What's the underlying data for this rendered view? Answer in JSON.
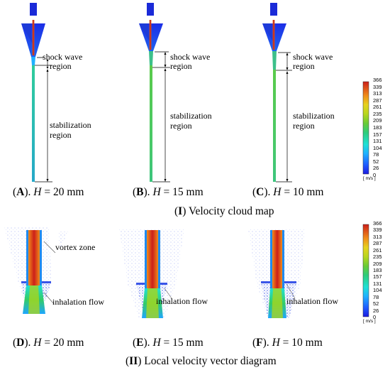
{
  "section_I": {
    "roman": "I",
    "title": "Velocity cloud map"
  },
  "section_II": {
    "roman": "II",
    "title": "Local velocity vector diagram"
  },
  "panels_top": [
    {
      "letter": "A",
      "var": "H",
      "value": "= 20 mm"
    },
    {
      "letter": "B",
      "var": "H",
      "value": "= 15 mm"
    },
    {
      "letter": "C",
      "var": "H",
      "value": "= 10 mm"
    }
  ],
  "panels_bottom": [
    {
      "letter": "D",
      "var": "H",
      "value": "= 20 mm"
    },
    {
      "letter": "E",
      "var": "H",
      "value": "= 15 mm"
    },
    {
      "letter": "F",
      "var": "H",
      "value": "= 10 mm"
    }
  ],
  "annotations": {
    "shock_wave_1": "shock wave",
    "shock_wave_2": "region",
    "stabilization_1": "stabilization",
    "stabilization_2": "region",
    "vortex": "vortex zone",
    "inhalation": "inhalation flow"
  },
  "colorbar": {
    "unit": "[ m/s ]",
    "ticks": [
      "366",
      "339",
      "313",
      "287",
      "261",
      "235",
      "209",
      "183",
      "157",
      "131",
      "104",
      "78",
      "52",
      "26",
      "0"
    ],
    "colors": [
      "#1a1ae6",
      "#1f5cff",
      "#1fa6ff",
      "#1fe0e0",
      "#22d6a0",
      "#33cc66",
      "#66cc33",
      "#a6d61f",
      "#d6d61f",
      "#f0c01a",
      "#f09a1a",
      "#ef6b1a",
      "#e6401a",
      "#cc1f1a"
    ]
  }
}
